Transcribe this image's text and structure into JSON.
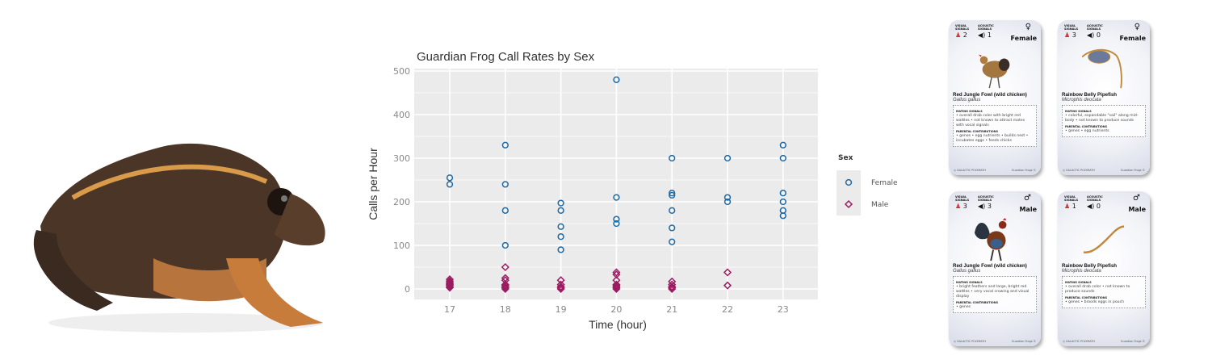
{
  "chart_data": {
    "type": "scatter",
    "title": "Guardian Frog Call Rates by Sex",
    "xlabel": "Time (hour)",
    "ylabel": "Calls per Hour",
    "xlim": [
      16.4,
      23.6
    ],
    "ylim": [
      -25,
      510
    ],
    "xticks": [
      17,
      18,
      19,
      20,
      21,
      22,
      23
    ],
    "yticks": [
      0,
      100,
      200,
      300,
      400,
      500
    ],
    "grid": true,
    "legend": {
      "title": "Sex",
      "placement": "right"
    },
    "series": [
      {
        "name": "Female",
        "marker": "circle",
        "color": "#1f6aa5",
        "points": [
          [
            17,
            255
          ],
          [
            17,
            240
          ],
          [
            18,
            330
          ],
          [
            18,
            240
          ],
          [
            18,
            180
          ],
          [
            18,
            100
          ],
          [
            19,
            197
          ],
          [
            19,
            180
          ],
          [
            19,
            143
          ],
          [
            19,
            120
          ],
          [
            19,
            90
          ],
          [
            20,
            480
          ],
          [
            20,
            210
          ],
          [
            20,
            160
          ],
          [
            20,
            150
          ],
          [
            21,
            300
          ],
          [
            21,
            220
          ],
          [
            21,
            215
          ],
          [
            21,
            180
          ],
          [
            21,
            140
          ],
          [
            21,
            108
          ],
          [
            22,
            300
          ],
          [
            22,
            210
          ],
          [
            22,
            200
          ],
          [
            23,
            330
          ],
          [
            23,
            300
          ],
          [
            23,
            220
          ],
          [
            23,
            200
          ],
          [
            23,
            180
          ],
          [
            23,
            168
          ]
        ]
      },
      {
        "name": "Male",
        "marker": "diamond",
        "color": "#9c1c62",
        "points": [
          [
            17,
            22
          ],
          [
            17,
            18
          ],
          [
            17,
            15
          ],
          [
            17,
            12
          ],
          [
            17,
            10
          ],
          [
            17,
            8
          ],
          [
            17,
            5
          ],
          [
            17,
            3
          ],
          [
            18,
            50
          ],
          [
            18,
            25
          ],
          [
            18,
            20
          ],
          [
            18,
            10
          ],
          [
            18,
            8
          ],
          [
            18,
            5
          ],
          [
            18,
            3
          ],
          [
            18,
            0
          ],
          [
            19,
            20
          ],
          [
            19,
            10
          ],
          [
            19,
            5
          ],
          [
            19,
            3
          ],
          [
            19,
            0
          ],
          [
            20,
            38
          ],
          [
            20,
            33
          ],
          [
            20,
            20
          ],
          [
            20,
            10
          ],
          [
            20,
            8
          ],
          [
            20,
            5
          ],
          [
            20,
            3
          ],
          [
            20,
            0
          ],
          [
            21,
            17
          ],
          [
            21,
            10
          ],
          [
            21,
            5
          ],
          [
            21,
            3
          ],
          [
            21,
            0
          ],
          [
            22,
            38
          ],
          [
            22,
            8
          ]
        ]
      }
    ]
  },
  "cards": [
    {
      "visual_label": "VISUAL SIGNALS",
      "acoustic_label": "ACOUSTIC SIGNALS",
      "visual": "2",
      "acoustic": "1",
      "sex_symbol": "♀",
      "sex": "Female",
      "name": "Red Jungle Fowl (wild chicken)",
      "sci": "Gallus gallus",
      "mating_label": "MATING SIGNALS",
      "mating": "• overall drab color with bright red wattles • not known to attract mates with vocal signals",
      "parental_label": "PARENTAL CONTRIBUTIONS",
      "parental": "• genes • egg nutrients • builds nest • incubates eggs • feeds chicks",
      "brand": "GALACTIC POLYMATH",
      "footer": "Guardian Frogs ©",
      "animal": "hen"
    },
    {
      "visual_label": "VISUAL SIGNALS",
      "acoustic_label": "ACOUSTIC SIGNALS",
      "visual": "3",
      "acoustic": "0",
      "sex_symbol": "♀",
      "sex": "Female",
      "name": "Rainbow Belly Pipefish",
      "sci": "Microphis deocata",
      "mating_label": "MATING SIGNALS",
      "mating": "• colorful, expandable \"sail\" along mid-body • not known to produce sounds",
      "parental_label": "PARENTAL CONTRIBUTIONS",
      "parental": "• genes • egg nutrients",
      "brand": "GALACTIC POLYMATH",
      "footer": "Guardian Frogs ©",
      "animal": "pipefish-female"
    },
    {
      "visual_label": "VISUAL SIGNALS",
      "acoustic_label": "ACOUSTIC SIGNALS",
      "visual": "3",
      "acoustic": "3",
      "sex_symbol": "♂",
      "sex": "Male",
      "name": "Red Jungle Fowl (wild chicken)",
      "sci": "Gallus gallus",
      "mating_label": "MATING SIGNALS",
      "mating": "• bright feathers and large, bright red wattles • very vocal crowing and visual display",
      "parental_label": "PARENTAL CONTRIBUTIONS",
      "parental": "• genes",
      "brand": "GALACTIC POLYMATH",
      "footer": "Guardian Frogs ©",
      "animal": "rooster"
    },
    {
      "visual_label": "VISUAL SIGNALS",
      "acoustic_label": "ACOUSTIC SIGNALS",
      "visual": "1",
      "acoustic": "0",
      "sex_symbol": "♂",
      "sex": "Male",
      "name": "Rainbow Belly Pipefish",
      "sci": "Microphis deocata",
      "mating_label": "MATING SIGNALS",
      "mating": "• overall drab color • not known to produce sounds",
      "parental_label": "PARENTAL CONTRIBUTIONS",
      "parental": "• genes • broods eggs in pouch",
      "brand": "GALACTIC POLYMATH",
      "footer": "Guardian Frogs ©",
      "animal": "pipefish-male"
    }
  ]
}
